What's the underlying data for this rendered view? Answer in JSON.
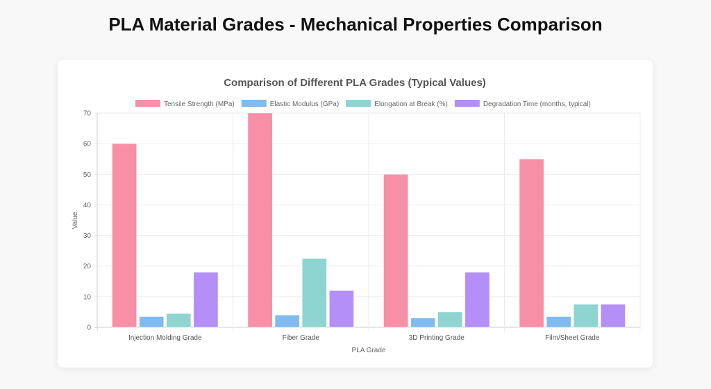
{
  "page_title": "PLA Material Grades - Mechanical Properties Comparison",
  "chart_data": {
    "type": "bar",
    "title": "Comparison of Different PLA Grades (Typical Values)",
    "xlabel": "PLA Grade",
    "ylabel": "Value",
    "ylim": [
      0,
      70
    ],
    "yticks": [
      "0",
      "10",
      "20",
      "30",
      "40",
      "50",
      "60",
      "70"
    ],
    "grid": true,
    "legend_position": "top",
    "categories": [
      "Injection Molding Grade",
      "Fiber Grade",
      "3D Printing Grade",
      "Film/Sheet Grade"
    ],
    "series": [
      {
        "name": "Tensile Strength (MPa)",
        "color": "#f78fa7",
        "values": [
          60,
          70,
          50,
          55
        ]
      },
      {
        "name": "Elastic Modulus (GPa)",
        "color": "#7fbbee",
        "values": [
          3.5,
          4,
          3,
          3.5
        ]
      },
      {
        "name": "Elongation at Break (%)",
        "color": "#8ed4d0",
        "values": [
          4.5,
          22.5,
          5,
          7.5
        ]
      },
      {
        "name": "Degradation Time (months, typical)",
        "color": "#b38ff7",
        "values": [
          18,
          12,
          18,
          7.5
        ]
      }
    ]
  }
}
